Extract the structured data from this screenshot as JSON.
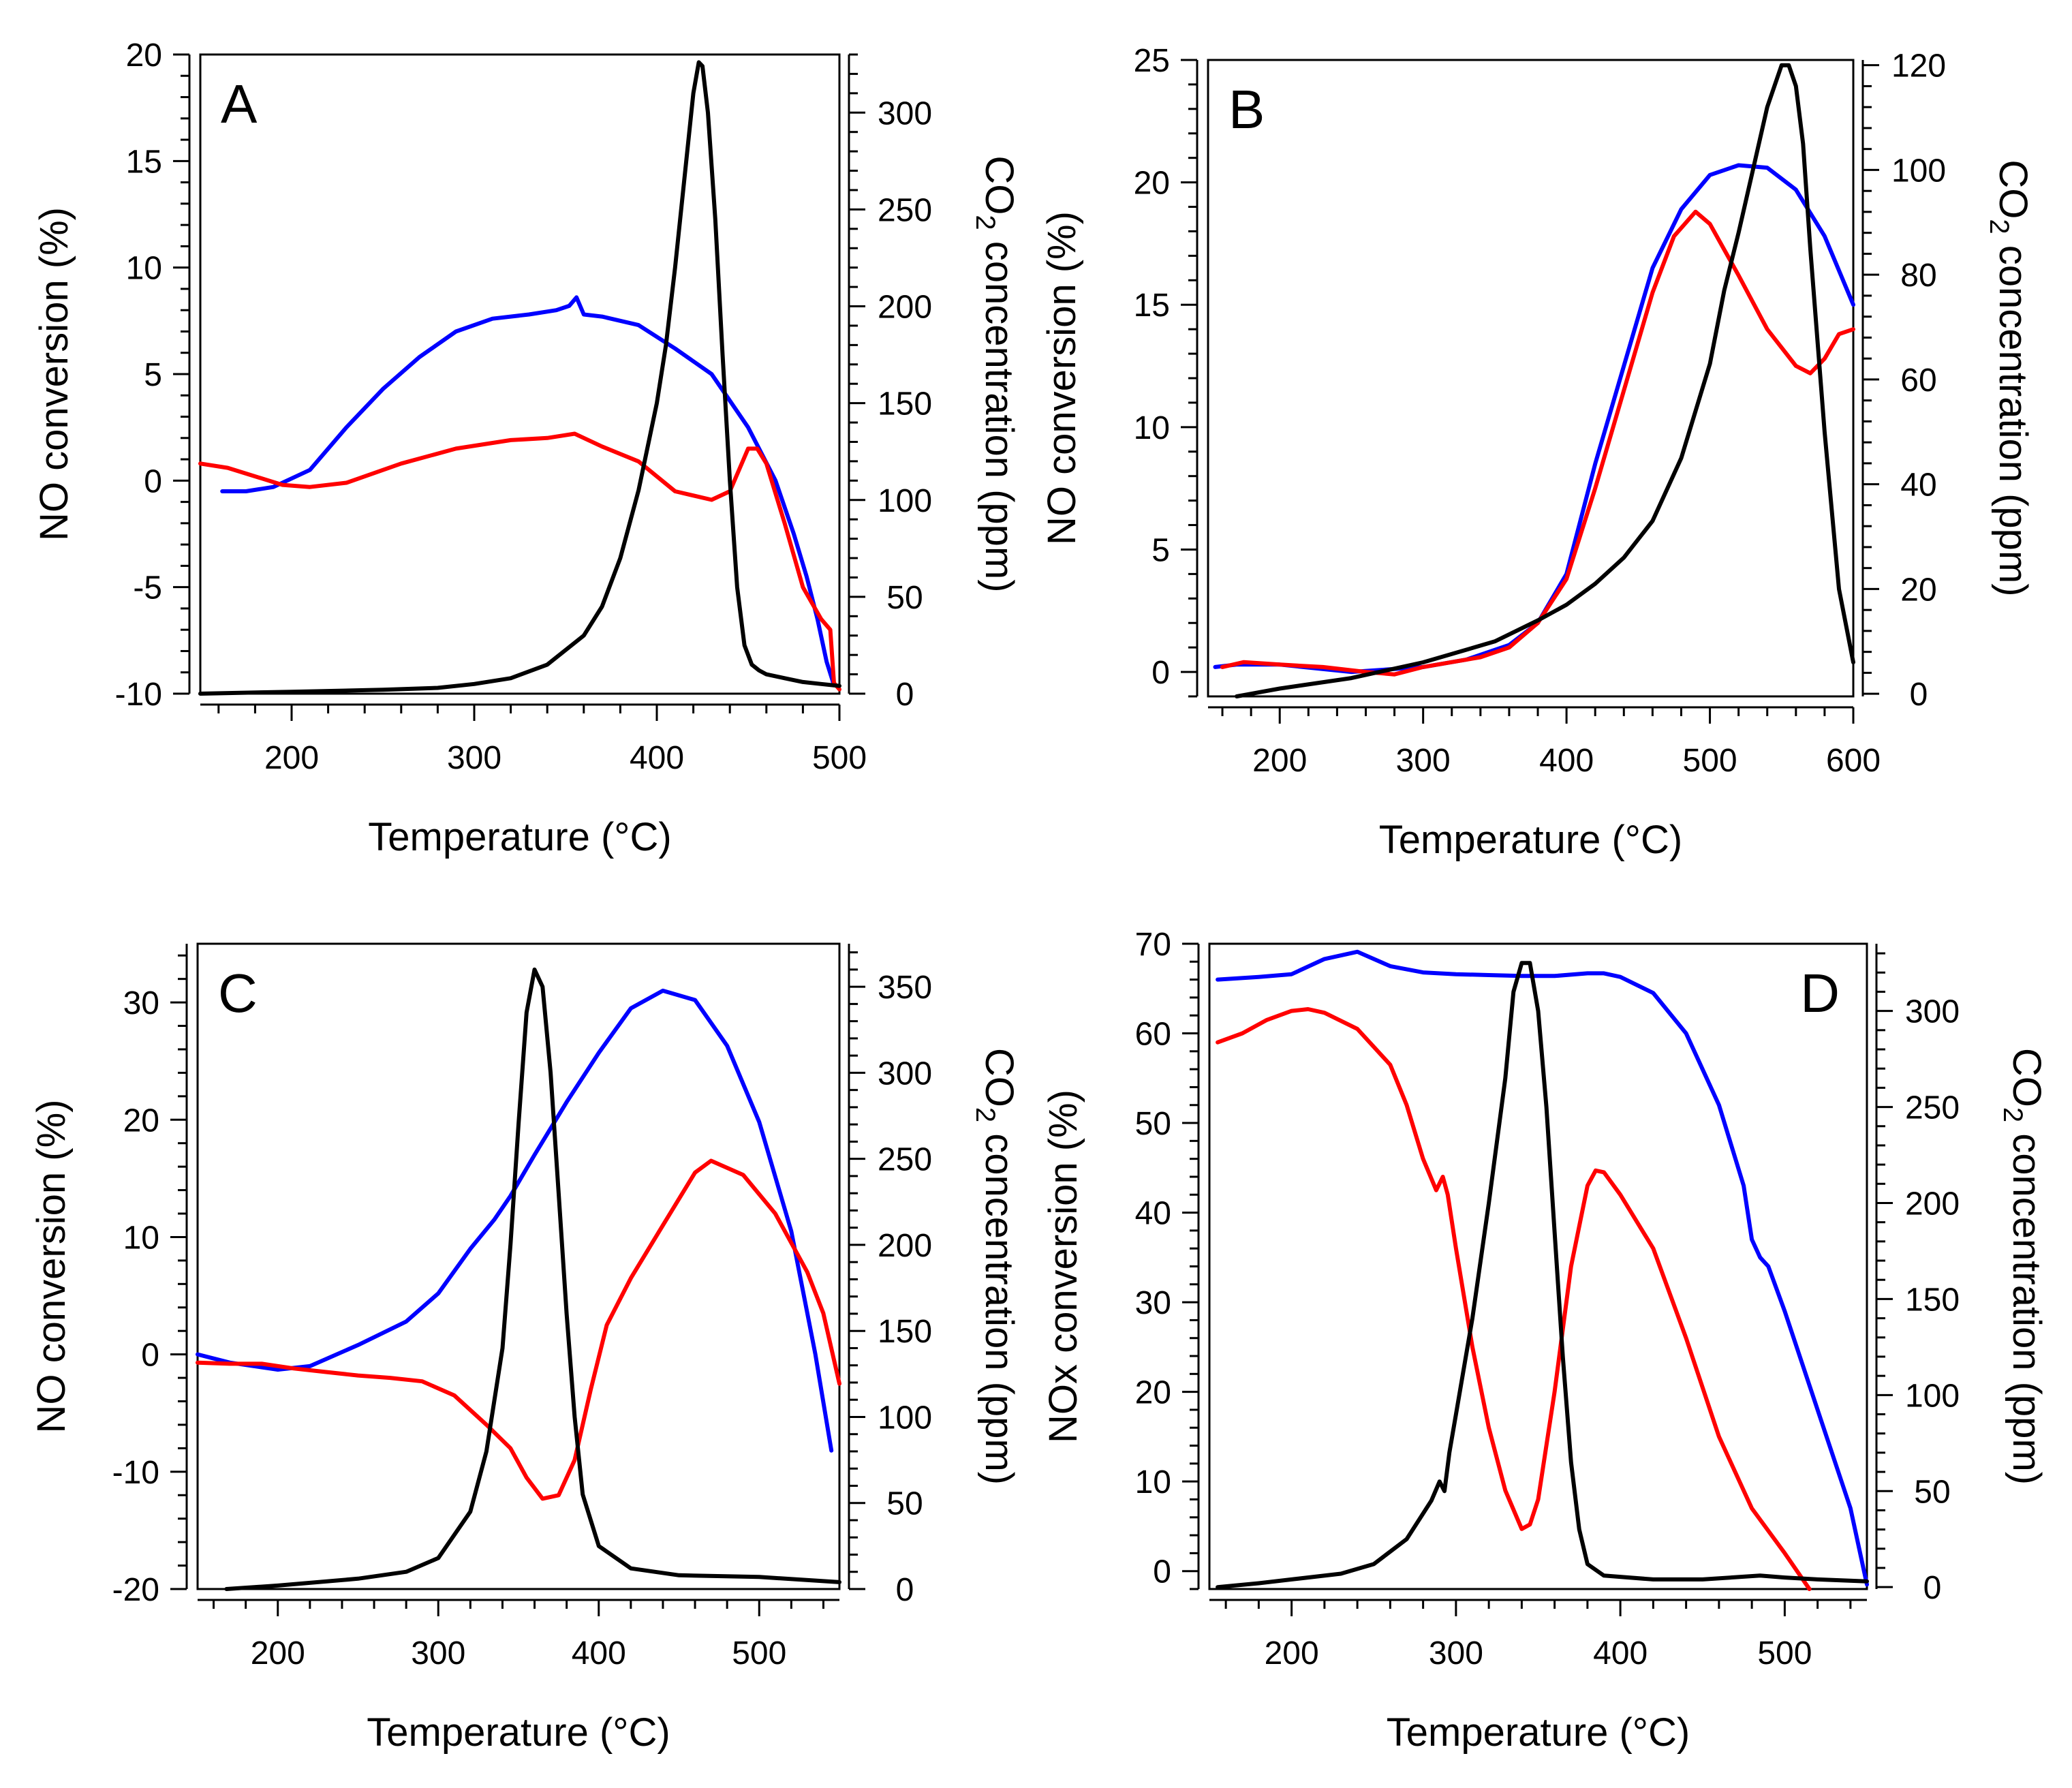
{
  "colors": {
    "blue": "#0000ff",
    "red": "#ff0000",
    "black": "#000000"
  },
  "chart_data": [
    {
      "panel": "A",
      "type": "line",
      "xlabel": "Temperature (°C)",
      "ylabel": "NO conversion (%)",
      "y2label_parts": [
        "CO",
        "2",
        " concentration (ppm)"
      ],
      "xlim": [
        150,
        500
      ],
      "ylim": [
        -10,
        20
      ],
      "y2lim": [
        0,
        330
      ],
      "xticks": [
        200,
        300,
        400,
        500
      ],
      "yticks": [
        -10,
        -5,
        0,
        5,
        10,
        15,
        20
      ],
      "y2ticks": [
        0,
        50,
        100,
        150,
        200,
        250,
        300
      ],
      "series": [
        {
          "name": "blue",
          "color": "blue",
          "axis": "left",
          "x": [
            162,
            175,
            190,
            210,
            230,
            250,
            270,
            290,
            310,
            330,
            345,
            352,
            356,
            360,
            370,
            390,
            410,
            430,
            450,
            465,
            475,
            482,
            488,
            493,
            497
          ],
          "y": [
            -0.5,
            -0.5,
            -0.3,
            0.5,
            2.5,
            4.3,
            5.8,
            7,
            7.6,
            7.8,
            8,
            8.2,
            8.6,
            7.8,
            7.7,
            7.3,
            6.2,
            5,
            2.5,
            0,
            -2.5,
            -4.5,
            -6.5,
            -8.5,
            -9.6
          ]
        },
        {
          "name": "red",
          "color": "red",
          "axis": "left",
          "x": [
            150,
            165,
            180,
            195,
            210,
            230,
            260,
            290,
            320,
            340,
            355,
            370,
            390,
            410,
            430,
            440,
            450,
            455,
            460,
            470,
            480,
            490,
            495,
            497,
            500
          ],
          "y": [
            0.8,
            0.6,
            0.2,
            -0.2,
            -0.3,
            -0.1,
            0.8,
            1.5,
            1.9,
            2,
            2.2,
            1.6,
            0.9,
            -0.5,
            -0.9,
            -0.5,
            1.5,
            1.5,
            0.8,
            -2,
            -5,
            -6.5,
            -7,
            -9.5,
            -9.8
          ]
        },
        {
          "name": "black",
          "color": "black",
          "axis": "right",
          "x": [
            150,
            200,
            250,
            280,
            300,
            320,
            340,
            360,
            370,
            380,
            390,
            400,
            405,
            410,
            415,
            420,
            423,
            425,
            428,
            432,
            436,
            440,
            444,
            448,
            452,
            456,
            460,
            470,
            480,
            490,
            500
          ],
          "y": [
            0,
            1,
            2,
            3,
            5,
            8,
            15,
            30,
            45,
            70,
            105,
            150,
            180,
            220,
            265,
            310,
            326,
            324,
            300,
            245,
            175,
            110,
            55,
            25,
            15,
            12,
            10,
            8,
            6,
            5,
            4
          ]
        }
      ]
    },
    {
      "panel": "B",
      "type": "line",
      "xlabel": "Temperature (°C)",
      "ylabel": "NO conversion (%)",
      "y2label_parts": [
        "CO",
        "2",
        " concentration (ppm)"
      ],
      "xlim": [
        150,
        600
      ],
      "ylim": [
        -1,
        25
      ],
      "y2lim": [
        -0.5,
        121
      ],
      "xticks": [
        200,
        300,
        400,
        500,
        600
      ],
      "yticks": [
        0,
        5,
        10,
        15,
        20,
        25
      ],
      "y2ticks": [
        0,
        20,
        40,
        60,
        80,
        100,
        120
      ],
      "series": [
        {
          "name": "blue",
          "color": "blue",
          "axis": "left",
          "x": [
            155,
            170,
            200,
            250,
            300,
            330,
            360,
            380,
            400,
            420,
            440,
            460,
            480,
            500,
            520,
            540,
            560,
            580,
            600
          ],
          "y": [
            0.2,
            0.3,
            0.3,
            0,
            0.2,
            0.5,
            1.1,
            2,
            4,
            8.5,
            12.5,
            16.5,
            18.9,
            20.3,
            20.7,
            20.6,
            19.7,
            17.8,
            15
          ]
        },
        {
          "name": "red",
          "color": "red",
          "axis": "left",
          "x": [
            160,
            175,
            200,
            230,
            260,
            280,
            300,
            320,
            340,
            360,
            380,
            400,
            420,
            440,
            460,
            475,
            490,
            500,
            520,
            540,
            560,
            570,
            580,
            590,
            600
          ],
          "y": [
            0.2,
            0.4,
            0.3,
            0.2,
            0,
            -0.1,
            0.2,
            0.4,
            0.6,
            1,
            2,
            3.8,
            7.5,
            11.5,
            15.5,
            17.8,
            18.8,
            18.3,
            16.2,
            14,
            12.5,
            12.2,
            12.8,
            13.8,
            14
          ]
        },
        {
          "name": "black",
          "color": "black",
          "axis": "right",
          "x": [
            170,
            200,
            250,
            300,
            350,
            380,
            400,
            420,
            440,
            460,
            480,
            500,
            510,
            520,
            530,
            540,
            550,
            555,
            560,
            565,
            570,
            580,
            590,
            600
          ],
          "y": [
            -0.5,
            1,
            3,
            6,
            10,
            14,
            17,
            21,
            26,
            33,
            45,
            63,
            77,
            88,
            100,
            112,
            120,
            120,
            116,
            105,
            85,
            50,
            20,
            6
          ]
        }
      ]
    },
    {
      "panel": "C",
      "type": "line",
      "xlabel": "Temperature (°C)",
      "ylabel": "NO conversion (%)",
      "y2label_parts": [
        "CO",
        "2",
        " concentration (ppm)"
      ],
      "xlim": [
        150,
        550
      ],
      "ylim": [
        -20,
        35
      ],
      "y2lim": [
        0,
        375
      ],
      "xticks": [
        200,
        300,
        400,
        500
      ],
      "yticks": [
        -20,
        -10,
        0,
        10,
        20,
        30
      ],
      "y2ticks": [
        0,
        50,
        100,
        150,
        200,
        250,
        300,
        350
      ],
      "series": [
        {
          "name": "blue",
          "color": "blue",
          "axis": "left",
          "x": [
            150,
            170,
            200,
            220,
            250,
            280,
            300,
            320,
            335,
            345,
            360,
            380,
            400,
            420,
            440,
            460,
            480,
            500,
            520,
            535,
            545
          ],
          "y": [
            0,
            -0.7,
            -1.3,
            -1,
            0.8,
            2.8,
            5.2,
            9,
            11.5,
            13.5,
            17,
            21.5,
            25.7,
            29.5,
            31,
            30.2,
            26.3,
            19.8,
            10.5,
            0,
            -8.2
          ]
        },
        {
          "name": "red",
          "color": "red",
          "axis": "left",
          "x": [
            150,
            170,
            190,
            210,
            230,
            250,
            270,
            290,
            310,
            330,
            345,
            355,
            365,
            375,
            385,
            395,
            405,
            420,
            440,
            460,
            470,
            490,
            510,
            530,
            540,
            550
          ],
          "y": [
            -0.7,
            -0.8,
            -0.8,
            -1.2,
            -1.5,
            -1.8,
            -2,
            -2.3,
            -3.5,
            -6,
            -8,
            -10.5,
            -12.3,
            -12,
            -9,
            -3,
            2.5,
            6.5,
            11,
            15.5,
            16.5,
            15.3,
            12,
            7,
            3.5,
            -2.5
          ]
        },
        {
          "name": "black",
          "color": "black",
          "axis": "right",
          "x": [
            168,
            200,
            250,
            280,
            300,
            320,
            330,
            340,
            345,
            350,
            355,
            360,
            365,
            370,
            375,
            380,
            385,
            390,
            400,
            420,
            450,
            500,
            550
          ],
          "y": [
            0,
            2,
            6,
            10,
            18,
            45,
            80,
            140,
            200,
            270,
            335,
            360,
            350,
            300,
            230,
            160,
            100,
            55,
            25,
            12,
            8,
            7,
            4
          ]
        }
      ]
    },
    {
      "panel": "D",
      "type": "line",
      "xlabel": "Temperature (°C)",
      "ylabel": "NOx conversion (%)",
      "y2label_parts": [
        "CO",
        "2",
        " concentration (ppm)"
      ],
      "xlim": [
        150,
        550
      ],
      "ylim": [
        -2,
        70
      ],
      "y2lim": [
        -1,
        335
      ],
      "xticks": [
        200,
        300,
        400,
        500
      ],
      "yticks": [
        0,
        10,
        20,
        30,
        40,
        50,
        60,
        70
      ],
      "y2ticks": [
        0,
        50,
        100,
        150,
        200,
        250,
        300
      ],
      "series": [
        {
          "name": "blue",
          "color": "blue",
          "axis": "left",
          "x": [
            155,
            180,
            200,
            220,
            240,
            260,
            280,
            300,
            320,
            340,
            360,
            380,
            390,
            400,
            420,
            440,
            460,
            475,
            480,
            485,
            490,
            500,
            520,
            540,
            550
          ],
          "y": [
            66,
            66.3,
            66.6,
            68.3,
            69.1,
            67.5,
            66.8,
            66.6,
            66.5,
            66.4,
            66.4,
            66.7,
            66.7,
            66.3,
            64.5,
            60,
            52,
            43,
            37,
            35,
            34,
            29,
            18,
            7,
            -1.5
          ]
        },
        {
          "name": "red",
          "color": "red",
          "axis": "left",
          "x": [
            155,
            170,
            185,
            200,
            210,
            220,
            240,
            260,
            270,
            280,
            288,
            292,
            295,
            300,
            310,
            320,
            330,
            340,
            345,
            350,
            360,
            370,
            380,
            385,
            390,
            400,
            420,
            440,
            460,
            480,
            500,
            515
          ],
          "y": [
            59,
            60,
            61.5,
            62.5,
            62.7,
            62.3,
            60.5,
            56.5,
            52,
            46,
            42.5,
            44,
            42,
            36,
            25,
            16,
            9,
            4.7,
            5.2,
            8,
            20,
            34,
            43,
            44.7,
            44.5,
            42,
            36,
            26,
            15,
            7,
            2,
            -2
          ]
        },
        {
          "name": "black",
          "color": "black",
          "axis": "right",
          "x": [
            155,
            180,
            200,
            230,
            250,
            270,
            285,
            290,
            293,
            296,
            300,
            310,
            320,
            330,
            335,
            340,
            345,
            350,
            355,
            360,
            365,
            370,
            375,
            380,
            390,
            420,
            450,
            485,
            500,
            520,
            550
          ],
          "y": [
            0,
            2,
            4,
            7,
            12,
            25,
            45,
            55,
            50,
            70,
            90,
            140,
            200,
            265,
            310,
            325,
            325,
            300,
            250,
            185,
            120,
            65,
            30,
            12,
            6,
            4,
            4,
            6,
            5,
            4,
            3
          ]
        }
      ]
    }
  ]
}
